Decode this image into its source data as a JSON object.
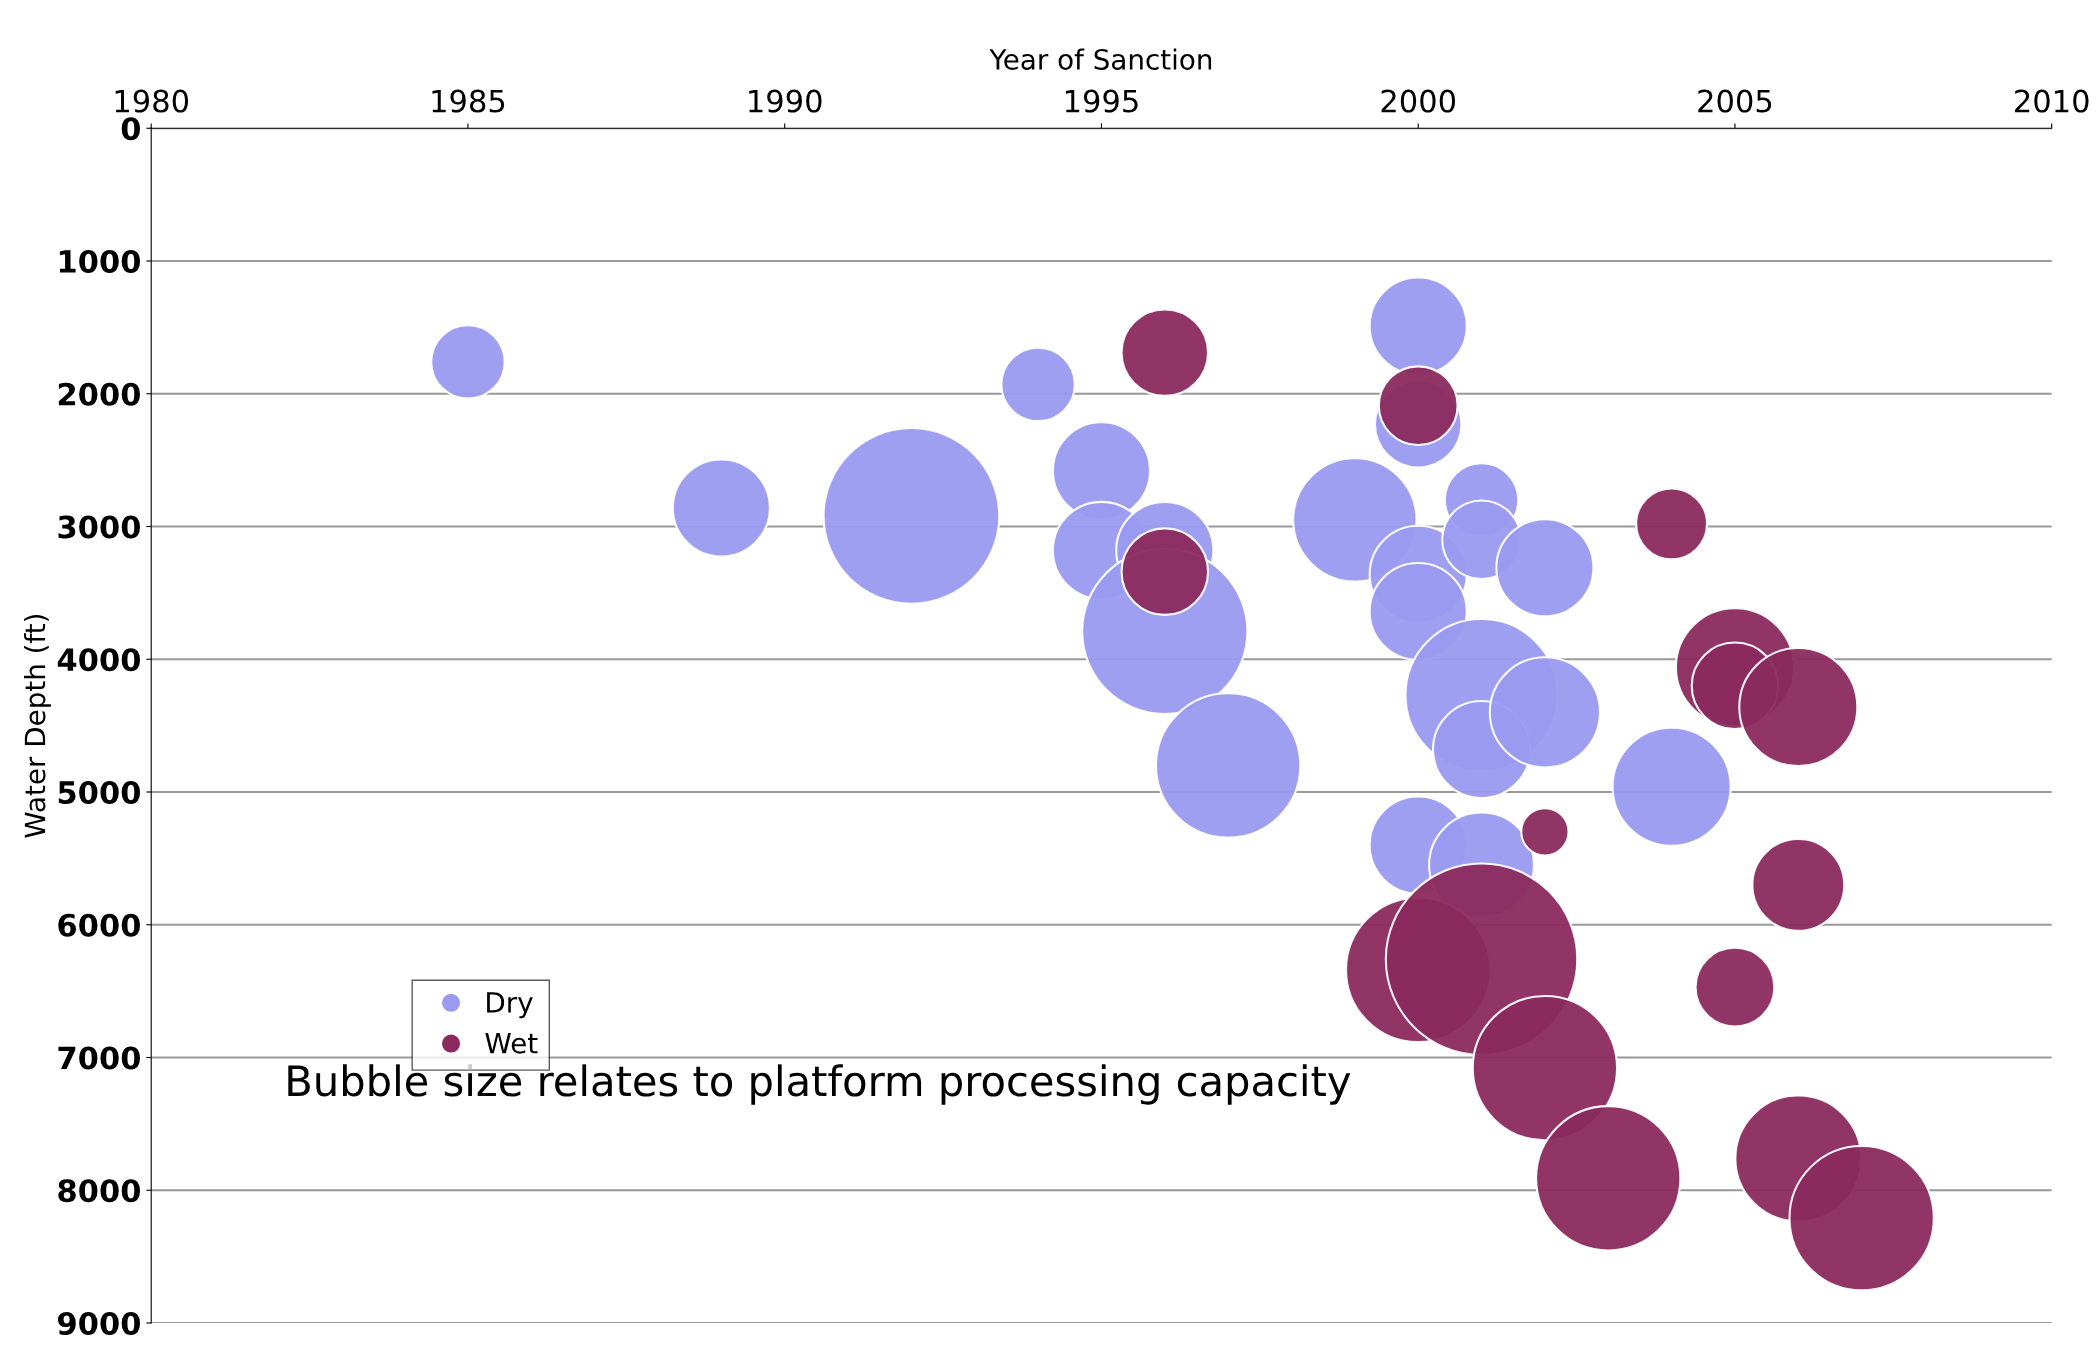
{
  "chart_data": {
    "type": "bubble",
    "xlabel": "Year of Sanction",
    "ylabel": "Water Depth (ft)",
    "xlim": [
      1980,
      2010
    ],
    "xticks": [
      1980,
      1985,
      1990,
      1995,
      2000,
      2005,
      2010
    ],
    "ylim": [
      9000,
      0
    ],
    "yticks": [
      0,
      1000,
      2000,
      3000,
      4000,
      5000,
      6000,
      7000,
      8000,
      9000
    ],
    "grid": "y",
    "legend": "bottom left",
    "annotations": [
      "Bubble size relates to platform processing capacity"
    ],
    "series": [
      {
        "name": "Dry",
        "color": "#9a9af0",
        "x": [
          1985,
          1994,
          1989,
          1992,
          1995,
          1995,
          1996,
          1996,
          1997,
          2000,
          2000,
          1999,
          2000,
          2000,
          2001,
          2001,
          2002,
          2001,
          2001,
          2002,
          2004,
          2000,
          2001
        ],
        "values": [
          1760,
          1930,
          2860,
          2920,
          2580,
          3180,
          3180,
          3790,
          4800,
          1490,
          2230,
          2950,
          3360,
          3640,
          2800,
          3100,
          3310,
          4270,
          4680,
          4400,
          4960,
          5400,
          5550
        ],
        "sizes": [
          0.147,
          0.147,
          0.257,
          0.842,
          0.257,
          0.257,
          0.257,
          0.745,
          0.568,
          0.257,
          0.204,
          0.415,
          0.257,
          0.257,
          0.147,
          0.169,
          0.257,
          0.631,
          0.257,
          0.331,
          0.38,
          0.257,
          0.3
        ]
      },
      {
        "name": "Wet",
        "color": "#8b2a5e",
        "x": [
          1996,
          2000,
          1996,
          2004,
          2005,
          2005,
          2006,
          2002,
          2006,
          2005,
          2000,
          2001,
          2002,
          2003,
          2006,
          2007
        ],
        "values": [
          1690,
          2090,
          3340,
          2980,
          4060,
          4200,
          4360,
          5300,
          5700,
          6470,
          6340,
          6260,
          7080,
          7910,
          7760,
          8210
        ],
        "sizes": [
          0.204,
          0.169,
          0.204,
          0.137,
          0.38,
          0.204,
          0.38,
          0.061,
          0.23,
          0.169,
          0.568,
          1.0,
          0.568,
          0.568,
          0.432,
          0.568
        ]
      }
    ]
  }
}
